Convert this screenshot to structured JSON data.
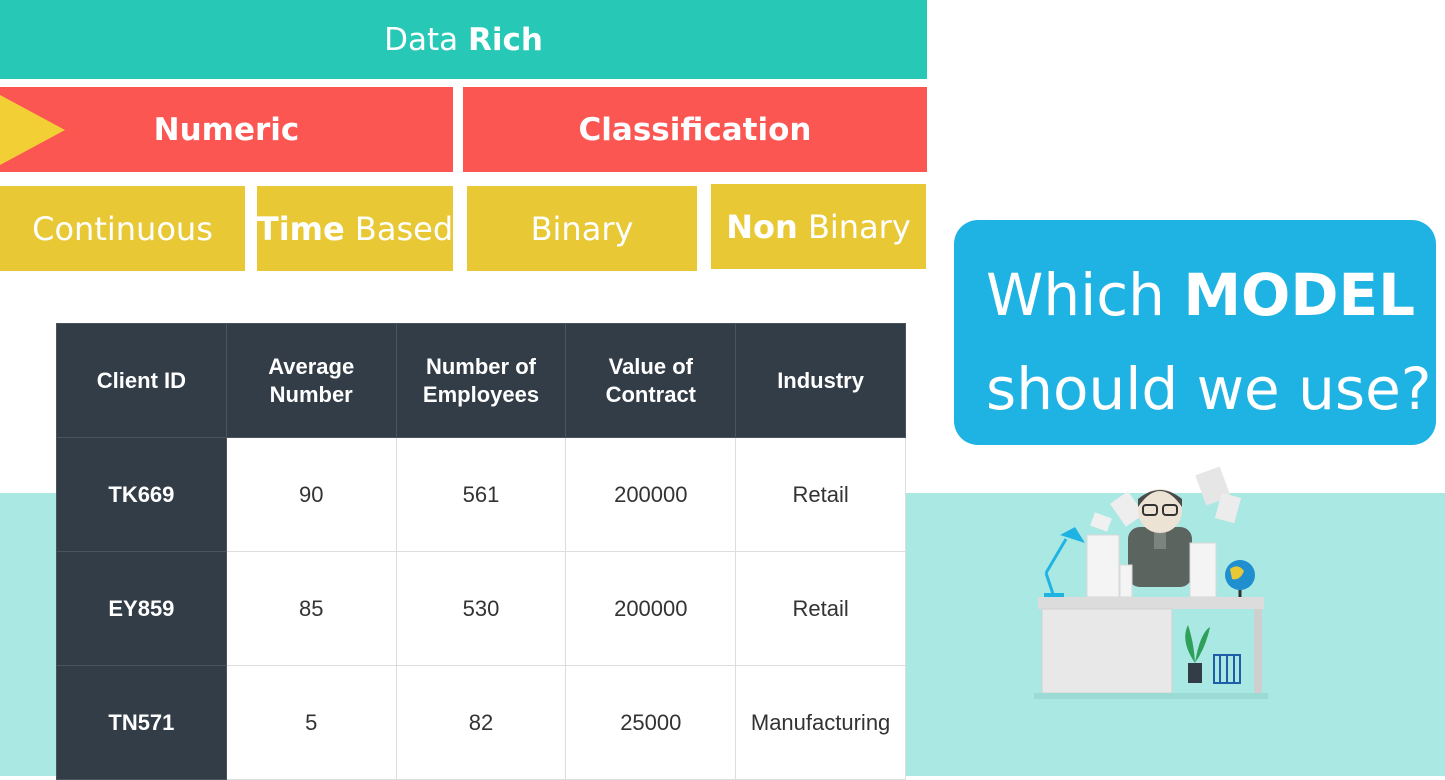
{
  "header": {
    "data_pre": "Data",
    "data_bold": "Rich"
  },
  "categories": {
    "numeric": "Numeric",
    "classification": "Classification"
  },
  "subcategories": {
    "continuous": "Continuous",
    "time_based_bold": "Time",
    "time_based_rest": "Based",
    "binary": "Binary",
    "non_binary_bold": "Non",
    "non_binary_rest": "Binary"
  },
  "question": {
    "line1_pre": "Which",
    "line1_bold": "MODEL",
    "line2": "should we use?"
  },
  "table": {
    "headers": [
      "Client ID",
      "Average\nNumber",
      "Number of\nEmployees",
      "Value of\nContract",
      "Industry"
    ],
    "rows": [
      {
        "id": "TK669",
        "average": "90",
        "employees": "561",
        "contract": "200000",
        "industry": "Retail"
      },
      {
        "id": "EY859",
        "average": "85",
        "employees": "530",
        "contract": "200000",
        "industry": "Retail"
      },
      {
        "id": "TN571",
        "average": "5",
        "employees": "82",
        "contract": "25000",
        "industry": "Manufacturing"
      }
    ]
  },
  "colors": {
    "teal": "#27c9b6",
    "red": "#fc5653",
    "yellow": "#e8c835",
    "blue": "#1fb3e4",
    "navy": "#333d47",
    "mint": "#aae9e3"
  },
  "icons": [
    "play-arrow-icon",
    "office-worker-illustration"
  ]
}
